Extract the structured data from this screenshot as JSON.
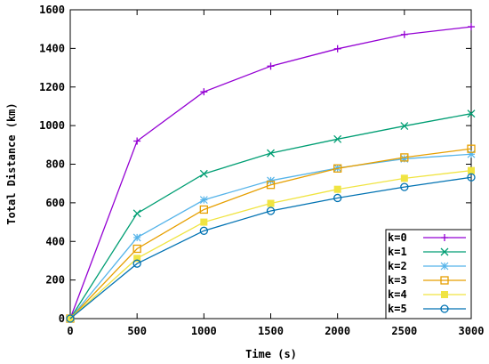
{
  "chart_data": {
    "type": "line",
    "title": "",
    "xlabel": "Time (s)",
    "ylabel": "Total Distance (km)",
    "xlim": [
      0,
      3000
    ],
    "ylim": [
      0,
      1600
    ],
    "xticks": [
      0,
      500,
      1000,
      1500,
      2000,
      2500,
      3000
    ],
    "yticks": [
      0,
      200,
      400,
      600,
      800,
      1000,
      1200,
      1400,
      1600
    ],
    "grid": false,
    "legend_position": "bottom-right",
    "x": [
      0,
      500,
      1000,
      1500,
      2000,
      2500,
      3000
    ],
    "series": [
      {
        "name": "k=0",
        "color": "#9400d3",
        "marker": "plus",
        "values": [
          0,
          920,
          1175,
          1308,
          1398,
          1472,
          1512
        ]
      },
      {
        "name": "k=1",
        "color": "#009e73",
        "marker": "cross",
        "values": [
          0,
          545,
          750,
          857,
          930,
          998,
          1062
        ]
      },
      {
        "name": "k=2",
        "color": "#56b4e9",
        "marker": "star",
        "values": [
          0,
          420,
          615,
          715,
          780,
          828,
          852
        ]
      },
      {
        "name": "k=3",
        "color": "#e69f00",
        "marker": "open-square",
        "values": [
          0,
          362,
          565,
          693,
          778,
          835,
          880
        ]
      },
      {
        "name": "k=4",
        "color": "#f0e442",
        "marker": "filled-square",
        "values": [
          0,
          312,
          500,
          597,
          670,
          727,
          767
        ]
      },
      {
        "name": "k=5",
        "color": "#0072b2",
        "marker": "open-circle",
        "values": [
          0,
          285,
          455,
          558,
          625,
          682,
          732
        ]
      }
    ]
  }
}
